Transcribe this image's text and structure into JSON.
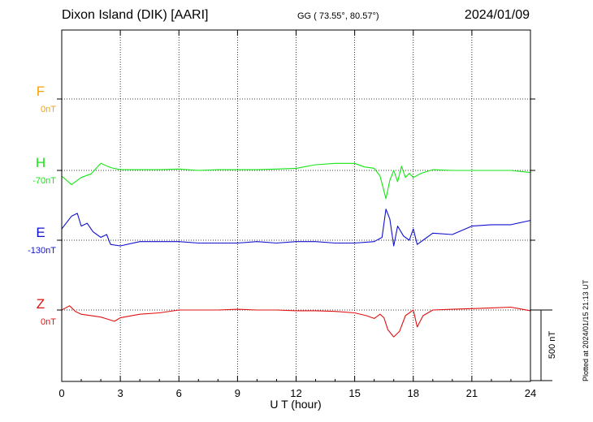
{
  "header": {
    "station": "Dixon Island (DIK)  [AARI]",
    "coords": "GG ( 73.55°,  80.57°)",
    "date": "2024/01/09",
    "plotted": "Plotted at 2024/01/15 21:13 UT"
  },
  "colors": {
    "F": "#f5a300",
    "H": "#14e614",
    "E": "#1010d0",
    "Z": "#e01010"
  },
  "chart_data": {
    "type": "line",
    "title": "Dixon Island (DIK)  [AARI]",
    "xlabel": "U T (hour)",
    "ylabel": "",
    "xlim": [
      0,
      24
    ],
    "xticks": [
      "0",
      "3",
      "6",
      "9",
      "12",
      "15",
      "18",
      "21",
      "24"
    ],
    "scale_label": "500 nT",
    "scale_nT": 500,
    "grid": true,
    "series": [
      {
        "name": "F",
        "baseline_label": "0nT",
        "points": []
      },
      {
        "name": "H",
        "baseline_label": "-70nT",
        "points": [
          [
            0,
            -40
          ],
          [
            0.5,
            -100
          ],
          [
            1,
            -50
          ],
          [
            1.5,
            -25
          ],
          [
            2,
            50
          ],
          [
            2.5,
            20
          ],
          [
            3,
            5
          ],
          [
            4,
            5
          ],
          [
            5,
            5
          ],
          [
            6,
            10
          ],
          [
            7,
            0
          ],
          [
            8,
            5
          ],
          [
            9,
            5
          ],
          [
            10,
            5
          ],
          [
            11,
            10
          ],
          [
            12,
            15
          ],
          [
            13,
            40
          ],
          [
            14,
            50
          ],
          [
            15,
            50
          ],
          [
            15.5,
            25
          ],
          [
            16,
            15
          ],
          [
            16.3,
            -40
          ],
          [
            16.6,
            -200
          ],
          [
            16.8,
            -70
          ],
          [
            17,
            0
          ],
          [
            17.2,
            -80
          ],
          [
            17.4,
            30
          ],
          [
            17.6,
            -50
          ],
          [
            17.8,
            -20
          ],
          [
            18,
            -50
          ],
          [
            18.4,
            -20
          ],
          [
            19,
            5
          ],
          [
            20,
            0
          ],
          [
            21,
            0
          ],
          [
            22,
            0
          ],
          [
            23,
            0
          ],
          [
            24,
            -15
          ]
        ]
      },
      {
        "name": "E",
        "baseline_label": "-130nT",
        "points": [
          [
            0,
            80
          ],
          [
            0.5,
            170
          ],
          [
            0.8,
            190
          ],
          [
            1,
            100
          ],
          [
            1.3,
            120
          ],
          [
            1.6,
            60
          ],
          [
            2,
            20
          ],
          [
            2.3,
            40
          ],
          [
            2.5,
            -30
          ],
          [
            3,
            -40
          ],
          [
            4,
            -10
          ],
          [
            5,
            -10
          ],
          [
            6,
            -10
          ],
          [
            7,
            -20
          ],
          [
            8,
            -20
          ],
          [
            9,
            -20
          ],
          [
            10,
            -10
          ],
          [
            11,
            -20
          ],
          [
            12,
            -10
          ],
          [
            13,
            -10
          ],
          [
            14,
            -20
          ],
          [
            15,
            -20
          ],
          [
            16,
            -10
          ],
          [
            16.4,
            20
          ],
          [
            16.6,
            220
          ],
          [
            16.8,
            150
          ],
          [
            17,
            -40
          ],
          [
            17.2,
            100
          ],
          [
            17.5,
            30
          ],
          [
            17.8,
            0
          ],
          [
            18,
            80
          ],
          [
            18.2,
            -30
          ],
          [
            18.5,
            0
          ],
          [
            19,
            50
          ],
          [
            20,
            40
          ],
          [
            21,
            100
          ],
          [
            22,
            110
          ],
          [
            23,
            110
          ],
          [
            24,
            140
          ]
        ]
      },
      {
        "name": "Z",
        "baseline_label": "0nT",
        "points": [
          [
            0,
            0
          ],
          [
            0.4,
            30
          ],
          [
            0.7,
            -10
          ],
          [
            1,
            -30
          ],
          [
            2,
            -50
          ],
          [
            2.7,
            -80
          ],
          [
            3,
            -55
          ],
          [
            4,
            -30
          ],
          [
            5,
            -20
          ],
          [
            6,
            0
          ],
          [
            7,
            0
          ],
          [
            8,
            0
          ],
          [
            9,
            5
          ],
          [
            10,
            0
          ],
          [
            11,
            0
          ],
          [
            12,
            -5
          ],
          [
            13,
            -5
          ],
          [
            14,
            -10
          ],
          [
            15,
            -20
          ],
          [
            15.6,
            -40
          ],
          [
            16,
            -60
          ],
          [
            16.3,
            -30
          ],
          [
            16.5,
            -55
          ],
          [
            16.7,
            -140
          ],
          [
            17,
            -190
          ],
          [
            17.3,
            -150
          ],
          [
            17.6,
            -40
          ],
          [
            18,
            0
          ],
          [
            18.2,
            -120
          ],
          [
            18.5,
            -40
          ],
          [
            19,
            0
          ],
          [
            20,
            5
          ],
          [
            21,
            10
          ],
          [
            22,
            15
          ],
          [
            23,
            20
          ],
          [
            24,
            -5
          ]
        ]
      }
    ]
  }
}
